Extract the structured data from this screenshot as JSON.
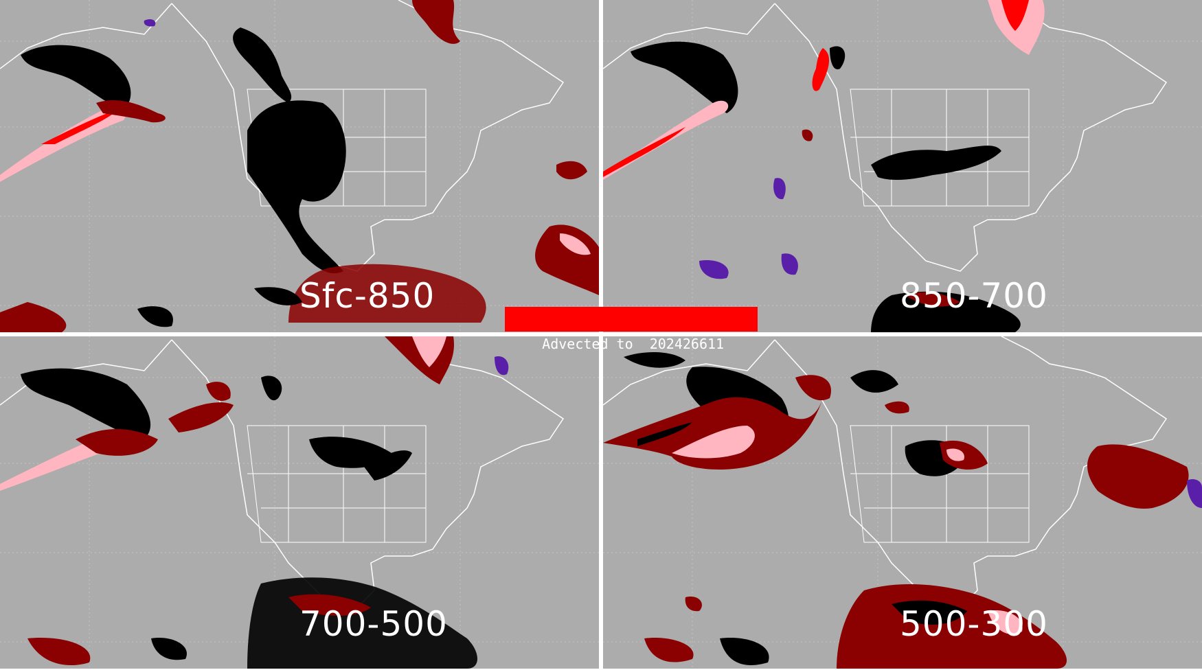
{
  "banner": {
    "prefix": "Advected to",
    "timestamp": "202426611"
  },
  "panels": [
    {
      "id": "p0",
      "label": "Sfc-850"
    },
    {
      "id": "p1",
      "label": "850-700"
    },
    {
      "id": "p2",
      "label": "700-500"
    },
    {
      "id": "p3",
      "label": "500-300"
    }
  ],
  "colors": {
    "background": "#acacac",
    "outline": "#ffffff",
    "black_mass": "#000000",
    "dark_red": "#8b0000",
    "red": "#ff0000",
    "pink": "#ffb6c1",
    "purple": "#5a1fa8",
    "banner": "#ff0000"
  }
}
